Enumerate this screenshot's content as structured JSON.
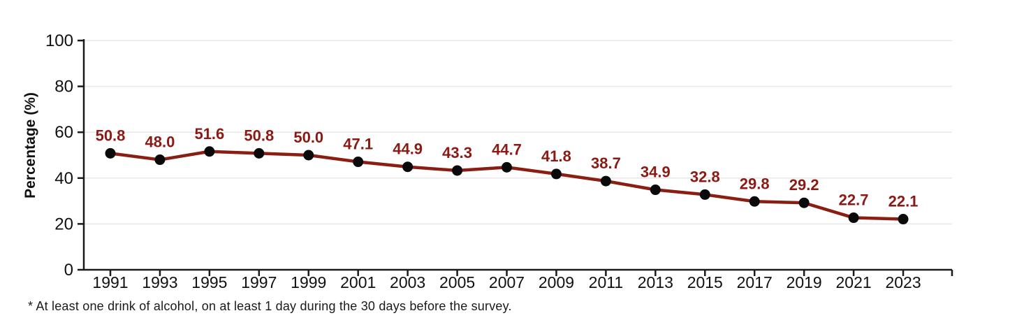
{
  "chart_data": {
    "type": "line",
    "title": "",
    "x": [
      1991,
      1993,
      1995,
      1997,
      1999,
      2001,
      2003,
      2005,
      2007,
      2009,
      2011,
      2013,
      2015,
      2017,
      2019,
      2021,
      2023
    ],
    "series": [
      {
        "name": "Percentage",
        "values": [
          50.8,
          48.0,
          51.6,
          50.8,
          50.0,
          47.1,
          44.9,
          43.3,
          44.7,
          41.8,
          38.7,
          34.9,
          32.8,
          29.8,
          29.2,
          22.7,
          22.1
        ]
      }
    ],
    "xlabel": "",
    "ylabel": "Percentage (%)",
    "ylim": [
      0,
      100
    ],
    "yticks": [
      0,
      20,
      40,
      60,
      80,
      100
    ],
    "grid": true,
    "legend": "none",
    "colors": {
      "line": "#8B1E12",
      "marker": "#0a0a0a",
      "data_label": "#8B1A14",
      "axis": "#1a1a1a",
      "grid": "#e7e7e7",
      "tick_text": "#111111"
    },
    "footnote": "* At least one drink of alcohol, on at least 1 day during the 30 days before the survey."
  }
}
